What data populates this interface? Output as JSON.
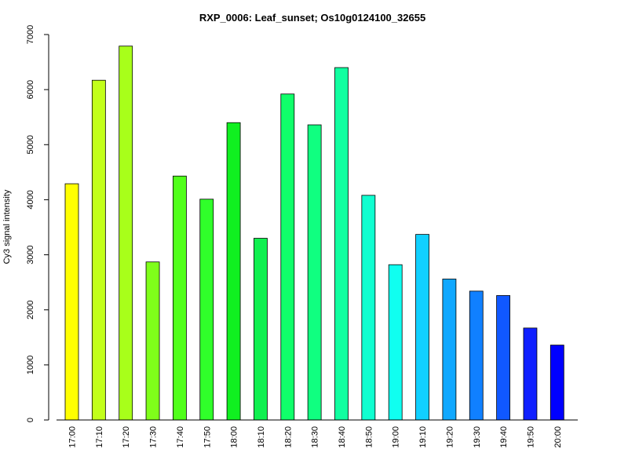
{
  "chart_data": {
    "type": "bar",
    "title": "RXP_0006: Leaf_sunset; Os10g0124100_32655",
    "xlabel": "",
    "ylabel": "Cy3 signal intensity",
    "ylim": [
      0,
      7000
    ],
    "yticks": [
      0,
      1000,
      2000,
      3000,
      4000,
      5000,
      6000,
      7000
    ],
    "grid": false,
    "legend": "none",
    "categories": [
      "17:00",
      "17:10",
      "17:20",
      "17:30",
      "17:40",
      "17:50",
      "18:00",
      "18:10",
      "18:20",
      "18:30",
      "18:40",
      "18:50",
      "19:00",
      "19:10",
      "19:20",
      "19:30",
      "19:40",
      "19:50",
      "20:00"
    ],
    "values": [
      4290,
      6170,
      6790,
      2870,
      4430,
      4010,
      5400,
      3300,
      5920,
      5360,
      6400,
      4080,
      2820,
      3370,
      2560,
      2340,
      2260,
      1670,
      1360
    ],
    "colors": [
      "#FFFF00",
      "#C2FF1A",
      "#A8FF1A",
      "#7FFF1A",
      "#50FF1A",
      "#30FF2A",
      "#10F020",
      "#10F050",
      "#10FF6A",
      "#10FF80",
      "#10FFA0",
      "#10FFD0",
      "#10FFF0",
      "#10D0FF",
      "#10A8FF",
      "#1080FF",
      "#1058FF",
      "#1020FF",
      "#0000FF"
    ]
  }
}
